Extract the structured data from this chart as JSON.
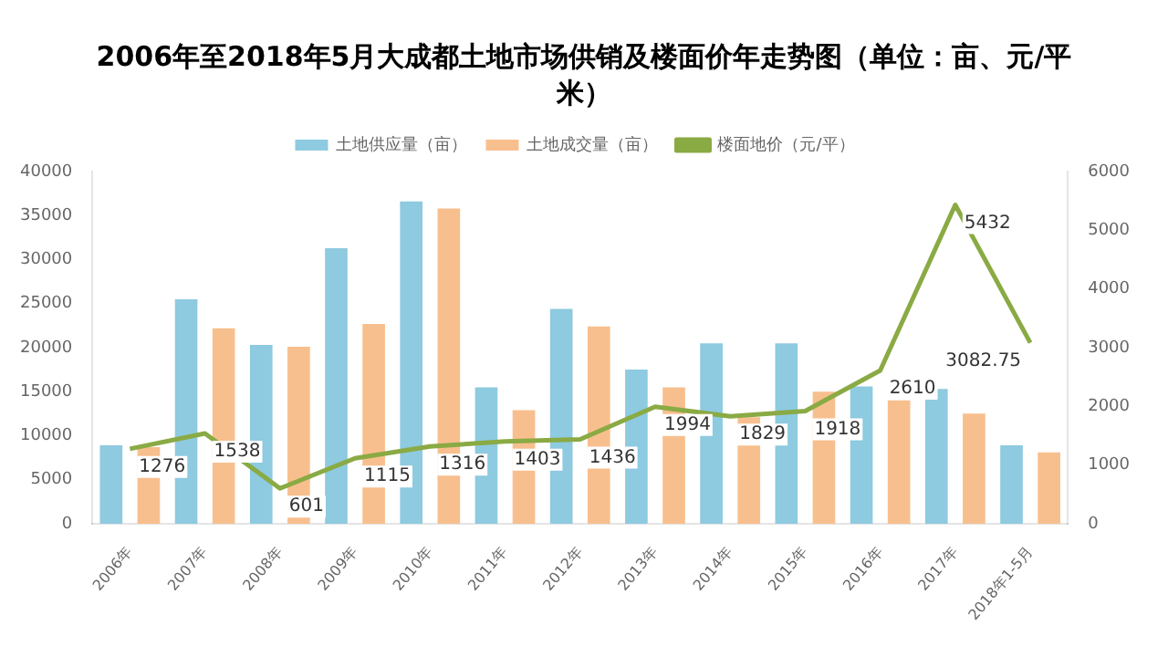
{
  "chart_data": {
    "type": "bar",
    "title": "2006年至2018年5月大成都土地市场供销及楼面价年走势图（单位：亩、元/平米）",
    "categories": [
      "2006年",
      "2007年",
      "2008年",
      "2009年",
      "2010年",
      "2011年",
      "2012年",
      "2013年",
      "2014年",
      "2015年",
      "2016年",
      "2017年",
      "2018年1-5月"
    ],
    "series": [
      {
        "name": "土地供应量（亩）",
        "color": "#8ecae0",
        "values": [
          8900,
          25500,
          20300,
          31300,
          36600,
          15500,
          24400,
          17500,
          20500,
          20500,
          15600,
          15300,
          8900
        ]
      },
      {
        "name": "土地成交量（亩）",
        "color": "#f8bf8e",
        "values": [
          8700,
          22200,
          20100,
          22700,
          35800,
          12900,
          22400,
          15500,
          12100,
          15000,
          14000,
          12500,
          8100
        ]
      },
      {
        "name": "楼面地价（元/平）",
        "color": "#8aaa44",
        "type": "line",
        "axis": "y2",
        "values": [
          1276,
          1538,
          601,
          1115,
          1316,
          1403,
          1436,
          1994,
          1829,
          1918,
          2610,
          5432,
          3082.75
        ],
        "value_labels": [
          "1276",
          "1538",
          "601",
          "1115",
          "1316",
          "1403",
          "1436",
          "1994",
          "1829",
          "1918",
          "2610",
          "5432",
          "3082.75"
        ]
      }
    ],
    "ylim": [
      0,
      40000
    ],
    "yticks": [
      0,
      5000,
      10000,
      15000,
      20000,
      25000,
      30000,
      35000,
      40000
    ],
    "y2lim": [
      0,
      6000
    ],
    "y2ticks": [
      0,
      1000,
      2000,
      3000,
      4000,
      5000,
      6000
    ],
    "grid": false,
    "legend": "top",
    "marker": "none"
  }
}
